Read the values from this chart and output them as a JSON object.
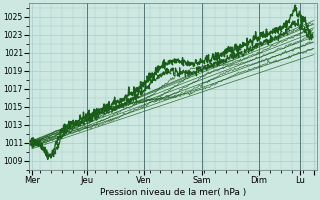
{
  "xlabel": "Pression niveau de la mer( hPa )",
  "xlim": [
    0,
    5.25
  ],
  "ylim": [
    1008.0,
    1026.5
  ],
  "yticks": [
    1009,
    1011,
    1013,
    1015,
    1017,
    1019,
    1021,
    1023,
    1025
  ],
  "xtick_positions": [
    0.05,
    1.05,
    2.1,
    3.15,
    4.2,
    4.95,
    5.2
  ],
  "xtick_labels": [
    "Mer",
    "Jeu",
    "Ven",
    "Sam",
    "Dim",
    "Lu",
    ""
  ],
  "vline_positions": [
    1.05,
    2.1,
    3.15,
    4.2,
    4.95
  ],
  "bg_color": "#cce8e0",
  "grid_color": "#aacccc",
  "line_color": "#1a5c1a",
  "thin_line_color": "#2a7a2a"
}
